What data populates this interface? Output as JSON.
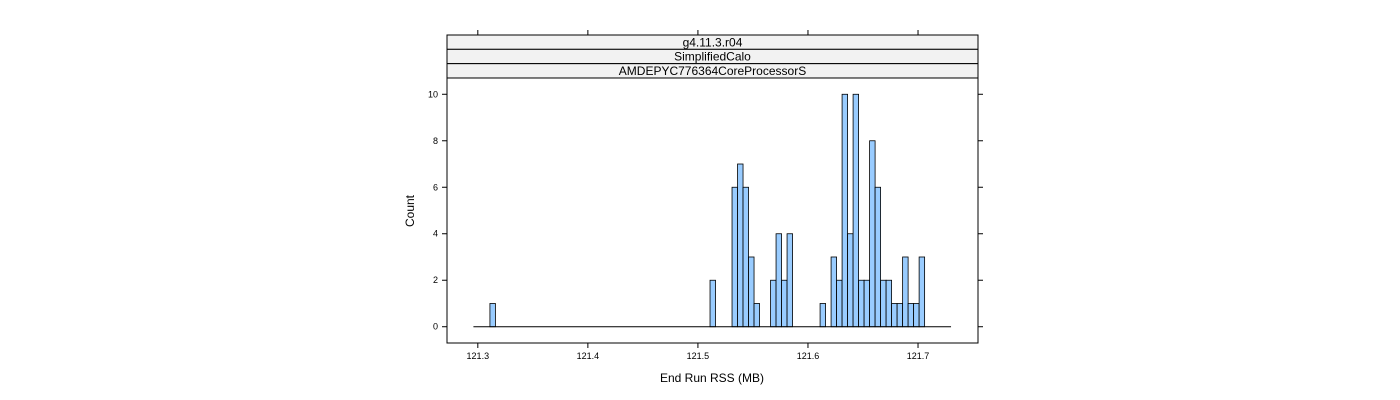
{
  "chart_data": {
    "type": "bar",
    "strips": [
      "g4.11.3.r04",
      "SimplifiedCalo",
      "AMDEPYC776364CoreProcessorS"
    ],
    "xlabel": "End Run RSS (MB)",
    "ylabel": "Count",
    "xlim": [
      121.272,
      121.7545
    ],
    "ylim": [
      -0.7,
      10.7
    ],
    "x_ticks": [
      121.3,
      121.4,
      121.5,
      121.6,
      121.7
    ],
    "x_tick_labels": [
      "121.3",
      "121.4",
      "121.5",
      "121.6",
      "121.7"
    ],
    "y_ticks": [
      0,
      2,
      4,
      6,
      8,
      10
    ],
    "y_tick_labels": [
      "0",
      "2",
      "4",
      "6",
      "8",
      "10"
    ],
    "baseline": [
      121.296,
      121.73
    ],
    "bin_width": 0.005,
    "bin_start": 121.296,
    "bins": [
      {
        "x": 121.311,
        "count": 1
      },
      {
        "x": 121.511,
        "count": 2
      },
      {
        "x": 121.531,
        "count": 6
      },
      {
        "x": 121.536,
        "count": 7
      },
      {
        "x": 121.541,
        "count": 6
      },
      {
        "x": 121.546,
        "count": 3
      },
      {
        "x": 121.551,
        "count": 1
      },
      {
        "x": 121.566,
        "count": 2
      },
      {
        "x": 121.571,
        "count": 4
      },
      {
        "x": 121.576,
        "count": 2
      },
      {
        "x": 121.581,
        "count": 4
      },
      {
        "x": 121.611,
        "count": 1
      },
      {
        "x": 121.621,
        "count": 3
      },
      {
        "x": 121.626,
        "count": 2
      },
      {
        "x": 121.631,
        "count": 10
      },
      {
        "x": 121.636,
        "count": 4
      },
      {
        "x": 121.641,
        "count": 10
      },
      {
        "x": 121.646,
        "count": 2
      },
      {
        "x": 121.651,
        "count": 2
      },
      {
        "x": 121.656,
        "count": 8
      },
      {
        "x": 121.661,
        "count": 6
      },
      {
        "x": 121.666,
        "count": 2
      },
      {
        "x": 121.671,
        "count": 2
      },
      {
        "x": 121.676,
        "count": 1
      },
      {
        "x": 121.681,
        "count": 1
      },
      {
        "x": 121.686,
        "count": 3
      },
      {
        "x": 121.691,
        "count": 1
      },
      {
        "x": 121.696,
        "count": 1
      },
      {
        "x": 121.701,
        "count": 3
      }
    ],
    "bar_fill": "#99ccff",
    "bar_stroke": "#000000",
    "strip_fill": "#f2f2f2",
    "grid": false
  }
}
